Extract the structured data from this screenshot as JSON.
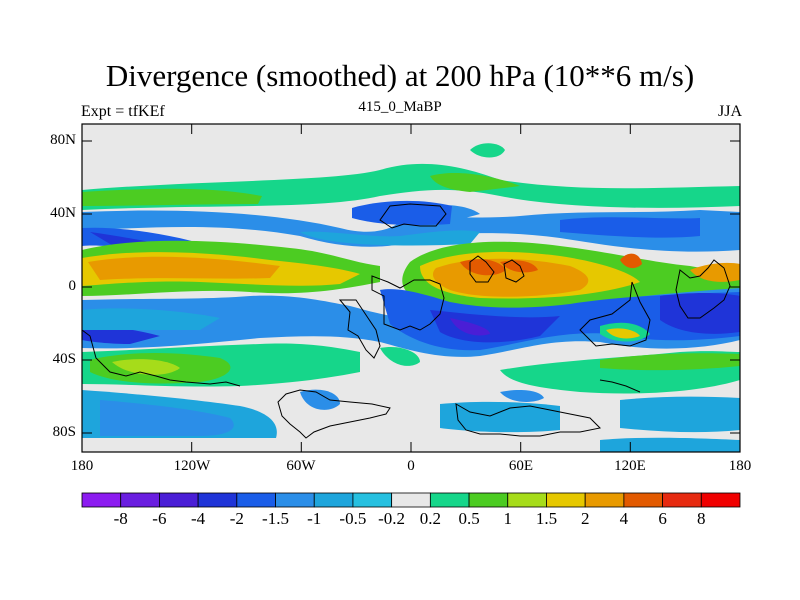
{
  "header": {
    "title": "Divergence (smoothed) at 200 hPa (10**6 m/s)",
    "expt": "Expt = tfKEf",
    "run": "415_0_MaBP",
    "season": "JJA"
  },
  "axes": {
    "y_ticks": [
      "80N",
      "40N",
      "0",
      "40S",
      "80S"
    ],
    "x_ticks": [
      "180",
      "120W",
      "60W",
      "0",
      "60E",
      "120E",
      "180"
    ]
  },
  "colorbar": {
    "colors": [
      "#8c1cf0",
      "#6a1ee0",
      "#4a1ed6",
      "#1f34d8",
      "#1a5de8",
      "#2b8ee8",
      "#1ea5dc",
      "#26c0e0",
      "#e8e8e8",
      "#16d68a",
      "#4ccc22",
      "#a6dc1a",
      "#e6c800",
      "#e89a00",
      "#e25a00",
      "#e62a10",
      "#f00000"
    ],
    "labels": [
      "-8",
      "-6",
      "-4",
      "-2",
      "-1.5",
      "-1",
      "-0.5",
      "-0.2",
      "0.2",
      "0.5",
      "1",
      "1.5",
      "2",
      "4",
      "6",
      "8"
    ]
  }
}
